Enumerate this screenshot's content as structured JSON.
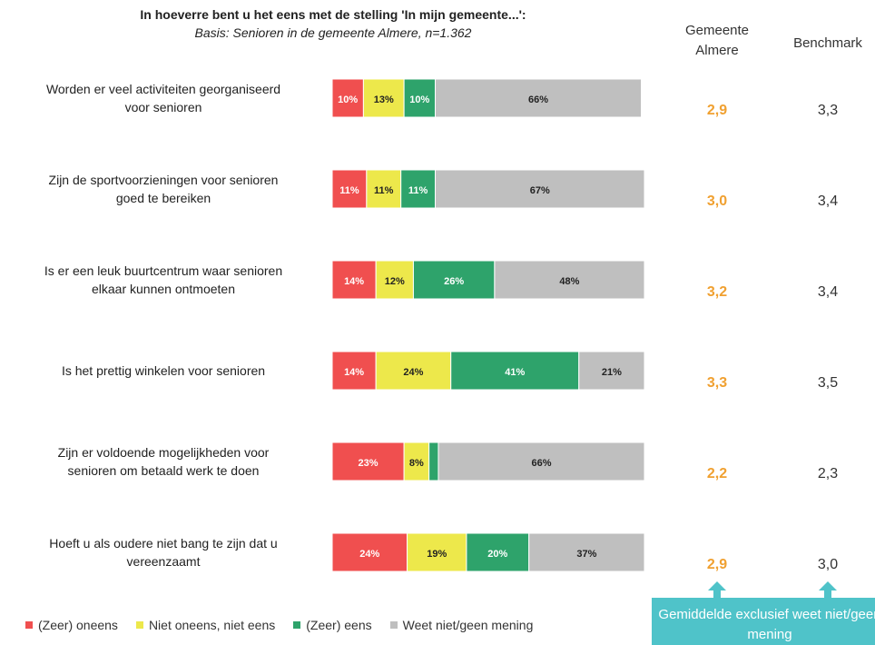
{
  "chart_data": {
    "type": "stacked-bar",
    "title": "In hoeverre bent u het eens met de stelling 'In mijn gemeente...':",
    "subtitle": "Basis: Senioren in de gemeente Almere, n=1.362",
    "categories": [
      "Worden er veel activiteiten georganiseerd\nvoor senioren",
      "Zijn de sportvoorzieningen voor senioren\ngoed te bereiken",
      "Is er een leuk buurtcentrum waar senioren\nelkaar kunnen ontmoeten",
      "Is het prettig winkelen voor senioren",
      "Zijn er voldoende mogelijkheden voor\nsenioren om betaald werk te doen",
      "Hoeft u als oudere niet bang te zijn dat u\nvereenzaamt"
    ],
    "xlim": [
      0,
      100
    ],
    "series": [
      {
        "name": "(Zeer) oneens",
        "color": "#f04f4f",
        "values": [
          10,
          11,
          14,
          14,
          23,
          24
        ],
        "value_labels": [
          "10%",
          "11%",
          "14%",
          "14%",
          "23%",
          "24%"
        ]
      },
      {
        "name": "Niet oneens, niet eens",
        "color": "#ede84b",
        "values": [
          13,
          11,
          12,
          24,
          8,
          19
        ],
        "value_labels": [
          "13%",
          "11%",
          "12%",
          "24%",
          "8%",
          "19%"
        ]
      },
      {
        "name": "(Zeer) eens",
        "color": "#2ea36b",
        "values": [
          10,
          11,
          26,
          41,
          3,
          20
        ],
        "value_labels": [
          "10%",
          "11%",
          "26%",
          "41%",
          null,
          "20%"
        ]
      },
      {
        "name": "Weet niet/geen mening",
        "color": "#bfbfbf",
        "values": [
          66,
          67,
          48,
          21,
          66,
          37
        ],
        "value_labels": [
          "66%",
          "67%",
          "48%",
          "21%",
          "66%",
          "37%"
        ]
      }
    ],
    "columns": [
      {
        "header": "Gemeente\nAlmere",
        "color": "#f0a030",
        "values": [
          "2,9",
          "3,0",
          "3,2",
          "3,3",
          "2,2",
          "2,9"
        ]
      },
      {
        "header": "Benchmark",
        "color": "#333333",
        "values": [
          "3,3",
          "3,4",
          "3,4",
          "3,5",
          "2,3",
          "3,0"
        ]
      }
    ],
    "annotation": "Gemiddelde exclusief weet niet/geen mening"
  }
}
